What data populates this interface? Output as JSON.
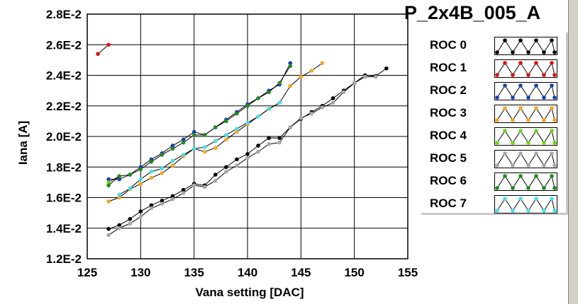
{
  "chart_data": {
    "type": "line",
    "title": "P_2x4B_005_A",
    "xlabel": "Vana setting [DAC]",
    "ylabel": "Iana [A]",
    "xlim": [
      125,
      155
    ],
    "ylim": [
      0.012,
      0.028
    ],
    "xticks": [
      125,
      130,
      135,
      140,
      145,
      150,
      155
    ],
    "xtick_labels": [
      "125",
      "130",
      "135",
      "140",
      "145",
      "150",
      "155"
    ],
    "yticks": [
      0.012,
      0.014,
      0.016,
      0.018,
      0.02,
      0.022,
      0.024,
      0.026,
      0.028
    ],
    "ytick_labels": [
      "1.2E-2",
      "1.4E-2",
      "1.6E-2",
      "1.8E-2",
      "2.0E-2",
      "2.2E-2",
      "2.4E-2",
      "2.6E-2",
      "2.8E-2"
    ],
    "grid": true,
    "legend_position": "right",
    "series": [
      {
        "name": "ROC 0",
        "color": "#000000",
        "x": [
          127,
          128,
          129,
          130,
          131,
          132,
          133,
          134,
          135,
          136,
          137,
          138,
          139,
          140,
          141,
          142,
          143,
          144,
          145,
          146,
          147,
          148,
          149,
          150,
          151,
          152,
          153
        ],
        "y": [
          0.01395,
          0.0142,
          0.0146,
          0.0151,
          0.0155,
          0.0158,
          0.0161,
          0.0165,
          0.0169,
          0.0168,
          0.0175,
          0.018,
          0.0185,
          0.01885,
          0.0194,
          0.0199,
          0.0199,
          0.0206,
          0.02115,
          0.0216,
          0.022,
          0.0225,
          0.023,
          0.0235,
          0.024,
          0.02395,
          0.02445
        ]
      },
      {
        "name": "ROC 1",
        "color": "#dd1111",
        "x": [
          126,
          127
        ],
        "y": [
          0.0254,
          0.026
        ]
      },
      {
        "name": "ROC 2",
        "color": "#1a3fb0",
        "x": [
          127,
          128,
          129,
          130,
          131,
          132,
          133,
          134,
          135,
          136,
          137,
          138,
          139,
          140,
          141,
          142,
          143,
          144
        ],
        "y": [
          0.0172,
          0.0172,
          0.0175,
          0.018,
          0.0185,
          0.0189,
          0.0194,
          0.0198,
          0.0203,
          0.0201,
          0.0206,
          0.0211,
          0.0216,
          0.0221,
          0.0225,
          0.023,
          0.0234,
          0.0248
        ]
      },
      {
        "name": "ROC 3",
        "color": "#f5a623",
        "x": [
          127,
          128,
          129,
          130,
          131,
          132,
          133,
          134,
          135,
          136,
          137,
          138,
          139,
          140,
          141,
          142,
          143,
          144,
          145,
          146,
          147
        ],
        "y": [
          0.01575,
          0.016,
          0.01655,
          0.0169,
          0.0173,
          0.0176,
          0.0181,
          0.0187,
          0.0192,
          0.019,
          0.01925,
          0.0198,
          0.0203,
          0.0208,
          0.0213,
          0.0218,
          0.0222,
          0.0233,
          0.0239,
          0.0243,
          0.0248
        ]
      },
      {
        "name": "ROC 4",
        "color": "#6fd61a",
        "x": [
          127,
          128
        ],
        "y": [
          0.017,
          0.0174
        ]
      },
      {
        "name": "ROC 5",
        "color": "#a8a8a8",
        "x": [
          127,
          128,
          129,
          130,
          131,
          132,
          133,
          134,
          135,
          136,
          137,
          138,
          139,
          140,
          141,
          142,
          143,
          144,
          145,
          146,
          147,
          148,
          149,
          150,
          151,
          152
        ],
        "y": [
          0.01355,
          0.014,
          0.0143,
          0.01475,
          0.0153,
          0.0156,
          0.0159,
          0.0163,
          0.0168,
          0.0167,
          0.0171,
          0.0177,
          0.0181,
          0.0186,
          0.019,
          0.0195,
          0.0196,
          0.0206,
          0.0212,
          0.0215,
          0.0219,
          0.0222,
          0.0229,
          0.0235,
          0.0239,
          0.0239
        ]
      },
      {
        "name": "ROC 6",
        "color": "#1f8a1f",
        "x": [
          127,
          128,
          129,
          130,
          131,
          132,
          133,
          134,
          135,
          136,
          137,
          138,
          139,
          140,
          141,
          142,
          143,
          144
        ],
        "y": [
          0.0168,
          0.0174,
          0.0175,
          0.01785,
          0.01835,
          0.0188,
          0.0192,
          0.0196,
          0.0201,
          0.0201,
          0.0206,
          0.021,
          0.0215,
          0.022,
          0.0225,
          0.0229,
          0.0235,
          0.0246
        ]
      },
      {
        "name": "ROC 7",
        "color": "#46e0e6",
        "x": [
          128,
          129,
          130,
          131,
          132,
          133,
          134,
          135,
          136,
          137,
          138,
          139,
          140,
          141,
          142,
          143
        ],
        "y": [
          0.0162,
          0.0166,
          0.0172,
          0.0177,
          0.0179,
          0.0184,
          0.0188,
          0.0192,
          0.0193,
          0.0197,
          0.0201,
          0.0205,
          0.0209,
          0.0213,
          0.0218,
          0.0222
        ]
      }
    ]
  }
}
